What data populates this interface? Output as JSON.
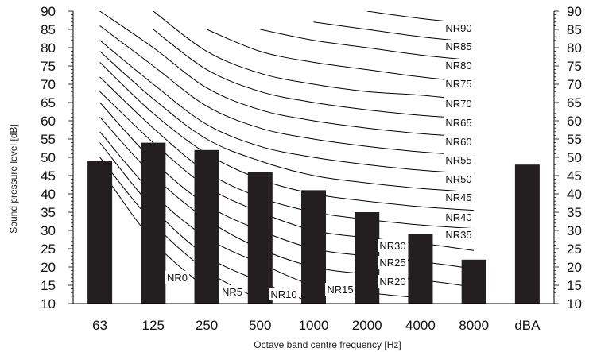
{
  "chart_data": {
    "type": "bar",
    "title": "",
    "xlabel": "Octave band centre frequency [Hz]",
    "ylabel": "Sound pressure level [dB]",
    "ylim": [
      10,
      90
    ],
    "yticks": [
      10,
      15,
      20,
      25,
      30,
      35,
      40,
      45,
      50,
      55,
      60,
      65,
      70,
      75,
      80,
      85,
      90
    ],
    "categories": [
      "63",
      "125",
      "250",
      "500",
      "1000",
      "2000",
      "4000",
      "8000",
      "dBA"
    ],
    "values": [
      49,
      54,
      52,
      46,
      41,
      35,
      29,
      22,
      48
    ],
    "bar_color": "#231f20",
    "curve_color": "#000000",
    "nr_curves": [
      {
        "label": "NR90",
        "values": [
          null,
          null,
          null,
          null,
          null,
          90,
          88,
          86.5
        ]
      },
      {
        "label": "NR85",
        "values": [
          null,
          null,
          null,
          null,
          87,
          85,
          83,
          81.5
        ]
      },
      {
        "label": "NR80",
        "values": [
          null,
          null,
          null,
          85,
          82,
          80,
          78,
          76.5
        ]
      },
      {
        "label": "NR75",
        "values": [
          null,
          null,
          85,
          79,
          76,
          74,
          72,
          70.5
        ]
      },
      {
        "label": "NR70",
        "values": [
          null,
          90,
          79,
          73,
          70,
          68,
          67,
          65.5
        ]
      },
      {
        "label": "NR65",
        "values": [
          null,
          85,
          74,
          68,
          65,
          63,
          61.5,
          60.5
        ]
      },
      {
        "label": "NR60",
        "values": [
          90,
          80,
          69,
          63,
          60,
          58,
          56.5,
          55.5
        ]
      },
      {
        "label": "NR55",
        "values": [
          86,
          75,
          64,
          58,
          55,
          53,
          51.5,
          50.5
        ]
      },
      {
        "label": "NR50",
        "values": [
          82,
          70,
          59,
          53,
          50,
          48,
          46.5,
          45.5
        ]
      },
      {
        "label": "NR45",
        "values": [
          79,
          66,
          55,
          49,
          45,
          43,
          41.5,
          40.5
        ]
      },
      {
        "label": "NR40",
        "values": [
          76,
          62,
          51,
          44,
          40,
          38,
          36.5,
          35.5
        ]
      },
      {
        "label": "NR35",
        "values": [
          72,
          58,
          46,
          39,
          35,
          33,
          31.5,
          30.5
        ]
      },
      {
        "label": "NR30",
        "values": [
          68,
          54,
          42,
          35,
          30,
          28,
          26.5,
          24.5
        ]
      },
      {
        "label": "NR25",
        "values": [
          65,
          49,
          37,
          30,
          25,
          23,
          21.5,
          19.5
        ]
      },
      {
        "label": "NR20",
        "values": [
          61,
          45,
          33,
          25,
          20,
          18,
          16.5,
          14.5
        ]
      },
      {
        "label": "NR15",
        "values": [
          57,
          40,
          28,
          21,
          15,
          13,
          11.5,
          null
        ]
      },
      {
        "label": "NR10",
        "values": [
          54,
          36,
          23,
          16,
          10,
          null,
          null,
          null
        ]
      },
      {
        "label": "NR5",
        "values": [
          50,
          32,
          19,
          11,
          null,
          null,
          null,
          null
        ]
      },
      {
        "label": "NR0",
        "values": [
          47,
          27,
          14,
          null,
          null,
          null,
          null,
          null
        ]
      }
    ]
  }
}
